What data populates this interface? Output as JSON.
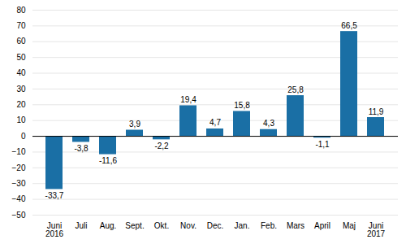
{
  "chart_data": {
    "type": "bar",
    "categories": [
      "Juni\n2016",
      "Juli",
      "Aug.",
      "Sept.",
      "Okt.",
      "Nov.",
      "Dec.",
      "Jan.",
      "Feb.",
      "Mars",
      "April",
      "Maj",
      "Juni\n2017"
    ],
    "values": [
      -33.7,
      -3.8,
      -11.6,
      3.9,
      -2.2,
      19.4,
      4.7,
      15.8,
      4.3,
      25.8,
      -1.1,
      66.5,
      11.9
    ],
    "value_labels": [
      "-33,7",
      "-3,8",
      "-11,6",
      "3,9",
      "-2,2",
      "19,4",
      "4,7",
      "15,8",
      "4,3",
      "25,8",
      "-1,1",
      "66,5",
      "11,9"
    ],
    "color": "#1a6fa5",
    "ylim": [
      -50,
      80
    ],
    "yticks": [
      -50,
      -40,
      -30,
      -20,
      -10,
      0,
      10,
      20,
      30,
      40,
      50,
      60,
      70,
      80
    ],
    "grid": true,
    "data_labels": true
  }
}
